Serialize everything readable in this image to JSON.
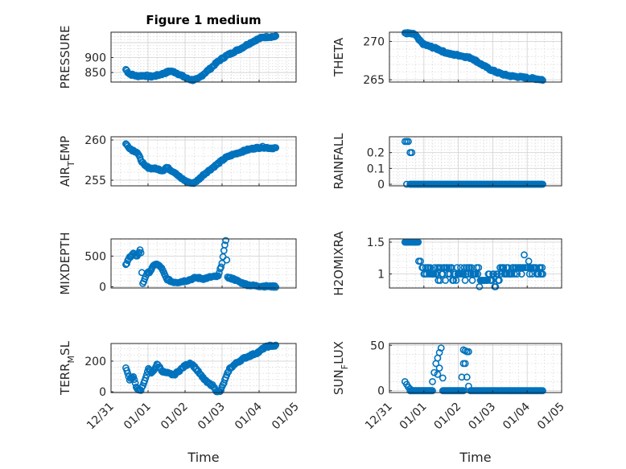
{
  "figure": {
    "title": "Figure 1 medium",
    "marker_color": "#0072bd",
    "x_axis_label": "Time",
    "x_ticks": [
      "12/31",
      "01/01",
      "01/02",
      "01/03",
      "01/04",
      "01/05"
    ]
  },
  "chart_data": [
    {
      "type": "scatter",
      "panel": "top-left",
      "title": "Figure 1 medium",
      "ylabel": "PRESSURE",
      "xlabel": "",
      "ylim": [
        818,
        985
      ],
      "yticks": [
        850,
        900
      ],
      "xlim": [
        0,
        5
      ],
      "x_start": 0.4,
      "x_end": 4.45,
      "anchors": [
        [
          0.4,
          860
        ],
        [
          0.5,
          845
        ],
        [
          0.7,
          838
        ],
        [
          0.9,
          840
        ],
        [
          1.1,
          836
        ],
        [
          1.3,
          842
        ],
        [
          1.45,
          848
        ],
        [
          1.6,
          855
        ],
        [
          1.75,
          850
        ],
        [
          1.9,
          840
        ],
        [
          2.05,
          830
        ],
        [
          2.2,
          825
        ],
        [
          2.35,
          828
        ],
        [
          2.5,
          845
        ],
        [
          2.7,
          865
        ],
        [
          2.9,
          888
        ],
        [
          3.1,
          905
        ],
        [
          3.3,
          918
        ],
        [
          3.5,
          930
        ],
        [
          3.7,
          945
        ],
        [
          3.9,
          958
        ],
        [
          4.1,
          968
        ],
        [
          4.3,
          970
        ],
        [
          4.45,
          970
        ]
      ]
    },
    {
      "type": "scatter",
      "panel": "top-right",
      "title": "",
      "ylabel": "THETA",
      "xlabel": "",
      "ylim": [
        264.7,
        271.2
      ],
      "yticks": [
        265,
        270
      ],
      "xlim": [
        0,
        5
      ],
      "x_start": 0.45,
      "x_end": 4.45,
      "anchors": [
        [
          0.45,
          271.1
        ],
        [
          0.6,
          271.0
        ],
        [
          0.75,
          270.9
        ],
        [
          0.85,
          270.2
        ],
        [
          1.0,
          269.6
        ],
        [
          1.2,
          269.3
        ],
        [
          1.4,
          269.0
        ],
        [
          1.6,
          268.6
        ],
        [
          1.8,
          268.3
        ],
        [
          2.0,
          268.2
        ],
        [
          2.2,
          268.0
        ],
        [
          2.4,
          267.8
        ],
        [
          2.5,
          267.5
        ],
        [
          2.6,
          267.2
        ],
        [
          2.75,
          266.8
        ],
        [
          2.9,
          266.4
        ],
        [
          3.1,
          266.0
        ],
        [
          3.3,
          265.7
        ],
        [
          3.5,
          265.5
        ],
        [
          3.7,
          265.4
        ],
        [
          3.9,
          265.3
        ],
        [
          4.1,
          265.2
        ],
        [
          4.3,
          265.1
        ],
        [
          4.45,
          265.0
        ]
      ]
    },
    {
      "type": "scatter",
      "panel": "row2-left",
      "title": "",
      "ylabel": "AIR_TEMP",
      "ylabel_main": "AIR",
      "ylabel_sub": "T",
      "ylabel_tail": "EMP",
      "xlabel": "",
      "ylim": [
        254.3,
        260.4
      ],
      "yticks": [
        255,
        260
      ],
      "xlim": [
        0,
        5
      ],
      "x_start": 0.4,
      "x_end": 4.45,
      "anchors": [
        [
          0.4,
          259.5
        ],
        [
          0.55,
          258.8
        ],
        [
          0.7,
          258.5
        ],
        [
          0.8,
          257.6
        ],
        [
          0.9,
          256.8
        ],
        [
          1.05,
          256.5
        ],
        [
          1.25,
          256.4
        ],
        [
          1.4,
          256.2
        ],
        [
          1.5,
          256.6
        ],
        [
          1.6,
          256.3
        ],
        [
          1.75,
          255.9
        ],
        [
          1.9,
          255.2
        ],
        [
          2.05,
          254.8
        ],
        [
          2.2,
          254.6
        ],
        [
          2.35,
          255.0
        ],
        [
          2.5,
          255.7
        ],
        [
          2.7,
          256.4
        ],
        [
          2.9,
          257.1
        ],
        [
          3.1,
          257.8
        ],
        [
          3.3,
          258.2
        ],
        [
          3.5,
          258.5
        ],
        [
          3.7,
          258.8
        ],
        [
          3.9,
          259.0
        ],
        [
          4.1,
          259.1
        ],
        [
          4.3,
          259.0
        ],
        [
          4.45,
          259.0
        ]
      ]
    },
    {
      "type": "scatter",
      "panel": "row2-right",
      "title": "",
      "ylabel": "RAINFALL",
      "xlabel": "",
      "ylim": [
        -0.01,
        0.3
      ],
      "yticks": [
        0,
        0.1,
        0.2
      ],
      "xlim": [
        0,
        5
      ],
      "x_start": 0.45,
      "x_end": 4.45,
      "special": "rain",
      "anchors": [
        [
          0.45,
          0
        ],
        [
          4.45,
          0
        ]
      ]
    },
    {
      "type": "scatter",
      "panel": "row3-left",
      "title": "",
      "ylabel": "MIXDEPTH",
      "xlabel": "",
      "ylim": [
        -20,
        780
      ],
      "yticks": [
        0,
        500
      ],
      "xlim": [
        0,
        5
      ],
      "x_start": 0.4,
      "x_end": 4.45,
      "anchors": [
        [
          0.4,
          350
        ],
        [
          0.5,
          480
        ],
        [
          0.6,
          550
        ],
        [
          0.7,
          480
        ],
        [
          0.8,
          640
        ],
        [
          0.85,
          30
        ],
        [
          0.95,
          200
        ],
        [
          1.05,
          250
        ],
        [
          1.2,
          380
        ],
        [
          1.35,
          320
        ],
        [
          1.5,
          130
        ],
        [
          1.65,
          80
        ],
        [
          1.8,
          75
        ],
        [
          1.95,
          90
        ],
        [
          2.1,
          110
        ],
        [
          2.3,
          150
        ],
        [
          2.5,
          130
        ],
        [
          2.7,
          160
        ],
        [
          2.9,
          170
        ],
        [
          3.0,
          400
        ],
        [
          3.1,
          760
        ],
        [
          3.15,
          150
        ],
        [
          3.3,
          130
        ],
        [
          3.5,
          70
        ],
        [
          3.7,
          30
        ],
        [
          3.9,
          15
        ],
        [
          4.1,
          10
        ],
        [
          4.3,
          5
        ],
        [
          4.45,
          5
        ]
      ]
    },
    {
      "type": "scatter",
      "panel": "row3-right",
      "title": "",
      "ylabel": "H2OMIXRA",
      "xlabel": "",
      "ylim": [
        0.78,
        1.55
      ],
      "yticks": [
        1,
        1.5
      ],
      "xlim": [
        0,
        5
      ],
      "x_start": 0.45,
      "x_end": 4.45,
      "special": "h2o",
      "anchors": [
        [
          0.45,
          1.5
        ],
        [
          4.45,
          1.0
        ]
      ]
    },
    {
      "type": "scatter",
      "panel": "bottom-left",
      "title": "",
      "ylabel": "TERR_MSL",
      "ylabel_main": "TERR",
      "ylabel_sub": "M",
      "ylabel_tail": "SL",
      "xlabel": "Time",
      "ylim": [
        -5,
        315
      ],
      "yticks": [
        0,
        200
      ],
      "xlim": [
        0,
        5
      ],
      "x_start": 0.4,
      "x_end": 4.45,
      "anchors": [
        [
          0.4,
          160
        ],
        [
          0.5,
          80
        ],
        [
          0.6,
          100
        ],
        [
          0.7,
          20
        ],
        [
          0.8,
          10
        ],
        [
          0.9,
          60
        ],
        [
          1.0,
          150
        ],
        [
          1.1,
          120
        ],
        [
          1.25,
          180
        ],
        [
          1.4,
          130
        ],
        [
          1.55,
          120
        ],
        [
          1.7,
          110
        ],
        [
          1.85,
          140
        ],
        [
          2.0,
          170
        ],
        [
          2.15,
          190
        ],
        [
          2.3,
          150
        ],
        [
          2.45,
          100
        ],
        [
          2.6,
          60
        ],
        [
          2.75,
          40
        ],
        [
          2.85,
          5
        ],
        [
          2.95,
          0
        ],
        [
          3.05,
          60
        ],
        [
          3.2,
          150
        ],
        [
          3.4,
          190
        ],
        [
          3.6,
          220
        ],
        [
          3.8,
          240
        ],
        [
          4.0,
          260
        ],
        [
          4.15,
          290
        ],
        [
          4.3,
          300
        ],
        [
          4.45,
          300
        ]
      ]
    },
    {
      "type": "scatter",
      "panel": "bottom-right",
      "title": "",
      "ylabel": "SUN_FLUX",
      "ylabel_main": "SUN",
      "ylabel_sub": "F",
      "ylabel_tail": "LUX",
      "xlabel": "Time",
      "ylim": [
        -2,
        52
      ],
      "yticks": [
        0,
        50
      ],
      "xlim": [
        0,
        5
      ],
      "x_start": 0.45,
      "x_end": 4.45,
      "special": "sun",
      "anchors": [
        [
          0.45,
          0
        ],
        [
          4.45,
          0
        ]
      ]
    }
  ]
}
